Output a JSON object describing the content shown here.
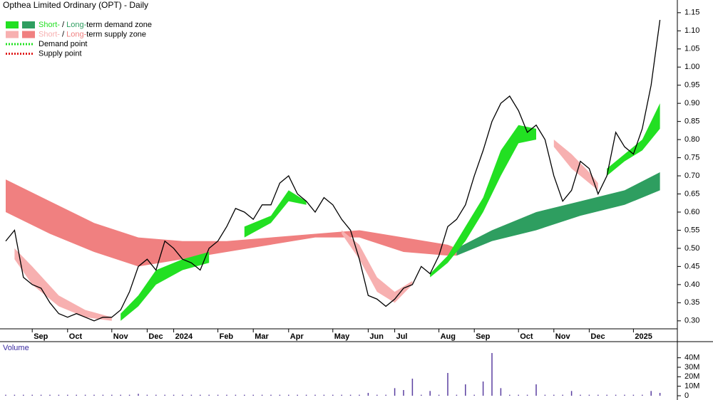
{
  "chart_data": {
    "type": "zones",
    "title": "Opthea Limited Ordinary (OPT) - Daily",
    "categories": [
      null,
      null,
      null,
      "Sep",
      null,
      null,
      null,
      "Oct",
      null,
      null,
      null,
      null,
      "Nov",
      null,
      null,
      null,
      "Dec",
      null,
      null,
      "2024",
      null,
      null,
      null,
      null,
      "Feb",
      null,
      null,
      null,
      "Mar",
      null,
      null,
      null,
      "Apr",
      null,
      null,
      null,
      null,
      "May",
      null,
      null,
      null,
      "Jun",
      null,
      null,
      "Jul",
      null,
      null,
      null,
      null,
      "Aug",
      null,
      null,
      null,
      "Sep",
      null,
      null,
      null,
      null,
      "Oct",
      null,
      null,
      null,
      "Nov",
      null,
      null,
      null,
      "Dec",
      null,
      null,
      null,
      null,
      "2025",
      null,
      null,
      null
    ],
    "price": {
      "color": "#000000",
      "values": [
        0.52,
        0.55,
        0.42,
        0.4,
        0.39,
        0.35,
        0.32,
        0.31,
        0.32,
        0.31,
        0.3,
        0.31,
        0.31,
        0.33,
        0.38,
        0.45,
        0.47,
        0.44,
        0.52,
        0.5,
        0.47,
        0.46,
        0.44,
        0.5,
        0.52,
        0.56,
        0.61,
        0.6,
        0.58,
        0.62,
        0.62,
        0.68,
        0.7,
        0.65,
        0.63,
        0.6,
        0.64,
        0.62,
        0.58,
        0.55,
        0.47,
        0.37,
        0.36,
        0.34,
        0.36,
        0.39,
        0.4,
        0.45,
        0.43,
        0.48,
        0.56,
        0.58,
        0.62,
        0.7,
        0.77,
        0.85,
        0.9,
        0.92,
        0.88,
        0.82,
        0.84,
        0.8,
        0.7,
        0.63,
        0.66,
        0.74,
        0.72,
        0.65,
        0.7,
        0.82,
        0.78,
        0.76,
        0.83,
        0.95,
        1.13
      ]
    },
    "zones": {
      "long_supply": {
        "color": "#f08080",
        "at": [
          0,
          5,
          10,
          15,
          20,
          25,
          30,
          35,
          40,
          45,
          50,
          51
        ],
        "upper": [
          0.69,
          0.63,
          0.57,
          0.53,
          0.52,
          0.52,
          0.53,
          0.54,
          0.55,
          0.53,
          0.51,
          0.5
        ],
        "lower": [
          0.6,
          0.54,
          0.49,
          0.45,
          0.47,
          0.49,
          0.51,
          0.53,
          0.53,
          0.49,
          0.48,
          0.48
        ]
      },
      "long_demand": {
        "color": "#2e9e60",
        "at": [
          51,
          55,
          60,
          65,
          70,
          74
        ],
        "upper": [
          0.5,
          0.55,
          0.6,
          0.63,
          0.66,
          0.71
        ],
        "lower": [
          0.48,
          0.52,
          0.55,
          0.59,
          0.62,
          0.66
        ]
      },
      "short_supply": {
        "color": "#f7b0b0",
        "at": [
          1,
          3,
          6,
          9,
          12,
          null,
          38,
          40,
          42,
          44,
          46,
          null,
          62,
          64,
          66,
          67
        ],
        "upper": [
          0.5,
          0.45,
          0.37,
          0.33,
          0.31,
          null,
          0.55,
          0.51,
          0.42,
          0.38,
          0.41,
          null,
          0.8,
          0.76,
          0.71,
          0.68
        ],
        "lower": [
          0.47,
          0.4,
          0.34,
          0.31,
          0.3,
          null,
          0.54,
          0.47,
          0.38,
          0.35,
          0.4,
          null,
          0.78,
          0.72,
          0.68,
          0.66
        ]
      },
      "short_demand": {
        "color": "#22e022",
        "at": [
          13,
          15,
          17,
          20,
          23,
          null,
          27,
          30,
          32,
          34,
          null,
          48,
          50,
          52,
          54,
          56,
          58,
          60,
          null,
          68,
          70,
          72,
          74
        ],
        "upper": [
          0.32,
          0.37,
          0.44,
          0.47,
          0.49,
          null,
          0.56,
          0.59,
          0.66,
          0.63,
          null,
          0.43,
          0.48,
          0.56,
          0.64,
          0.77,
          0.84,
          0.83,
          null,
          0.72,
          0.76,
          0.8,
          0.9
        ],
        "lower": [
          0.3,
          0.34,
          0.4,
          0.44,
          0.46,
          null,
          0.53,
          0.57,
          0.63,
          0.62,
          null,
          0.42,
          0.46,
          0.52,
          0.6,
          0.7,
          0.79,
          0.8,
          null,
          0.7,
          0.74,
          0.77,
          0.83
        ]
      }
    },
    "ylim": [
      0.278,
      1.185
    ],
    "yticks": [
      {
        "value": 0.3,
        "label": "0.30"
      },
      0.35,
      {
        "value": 0.4,
        "label": "0.40"
      },
      0.45,
      {
        "value": 0.5,
        "label": "0.50"
      },
      0.55,
      {
        "value": 0.6,
        "label": "0.60"
      },
      0.65,
      {
        "value": 0.7,
        "label": "0.70"
      },
      0.75,
      {
        "value": 0.8,
        "label": "0.80"
      },
      0.85,
      {
        "value": 0.9,
        "label": "0.90"
      },
      0.95,
      {
        "value": 1.0,
        "label": "1.00"
      },
      1.05,
      {
        "value": 1.1,
        "label": "1.10"
      },
      1.15
    ],
    "legend": [
      {
        "parts": [
          "Short-",
          " / ",
          "Long-",
          "term demand zone"
        ],
        "colors": [
          "#22e022",
          "#2e9e60"
        ]
      },
      {
        "parts": [
          "Short-",
          " / ",
          "Long-",
          "term supply zone"
        ],
        "colors": [
          "#f7b0b0",
          "#f08080"
        ]
      },
      {
        "parts": [
          "Demand point"
        ],
        "colors": [
          "#22e022"
        ]
      },
      {
        "parts": [
          "Supply point"
        ],
        "colors": [
          "#e02020"
        ]
      }
    ],
    "volume": {
      "label": "Volume",
      "color": "#5a3fa0",
      "ylim": [
        0,
        48
      ],
      "yticks": [
        {
          "value": 0,
          "label": "0"
        },
        {
          "value": 10,
          "label": "10M"
        },
        {
          "value": 20,
          "label": "20M"
        },
        {
          "value": 30,
          "label": "30M"
        },
        {
          "value": 40,
          "label": "40M"
        }
      ],
      "values": [
        1,
        1,
        1,
        1,
        1,
        1,
        1,
        1,
        1,
        1,
        1,
        1,
        1,
        1,
        1,
        2,
        1,
        1,
        1,
        1,
        1,
        1,
        1,
        1,
        1,
        1,
        1,
        1,
        1,
        1,
        1,
        1,
        1,
        1,
        1,
        1,
        1,
        1,
        1,
        1,
        1,
        3,
        1,
        1,
        8,
        6,
        18,
        1,
        5,
        1,
        24,
        1,
        12,
        1,
        15,
        45,
        8,
        1,
        1,
        1,
        12,
        1,
        1,
        1,
        5,
        1,
        1,
        1,
        1,
        1,
        1,
        1,
        1,
        5,
        3
      ]
    }
  }
}
